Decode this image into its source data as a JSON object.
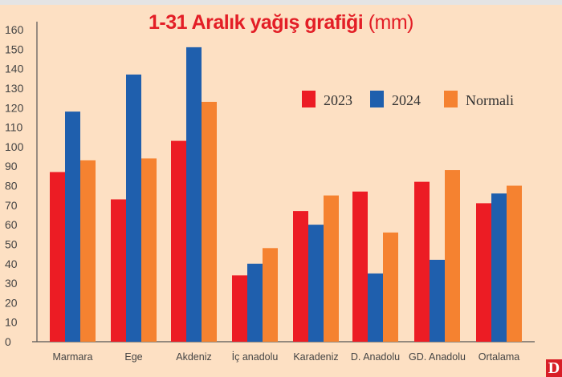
{
  "chart_data": {
    "type": "bar",
    "title": "1-31 Aralık yağış grafiği",
    "title_unit": "(mm)",
    "categories": [
      "Marmara",
      "Ege",
      "Akdeniz",
      "İç anadolu",
      "Karadeniz",
      "D. Anadolu",
      "GD. Anadolu",
      "Ortalama"
    ],
    "series": [
      {
        "name": "2023",
        "color": "#ec1c24",
        "values": [
          87,
          73,
          103,
          34,
          67,
          77,
          82,
          71
        ]
      },
      {
        "name": "2024",
        "color": "#1f5fad",
        "values": [
          118,
          137,
          151,
          40,
          60,
          35,
          42,
          76
        ]
      },
      {
        "name": "Normali",
        "color": "#f58230",
        "values": [
          93,
          94,
          123,
          48,
          75,
          56,
          88,
          80
        ]
      }
    ],
    "yticks": [
      0,
      10,
      20,
      30,
      40,
      50,
      60,
      70,
      80,
      90,
      100,
      110,
      120,
      130,
      140,
      150,
      160
    ],
    "ylim": [
      0,
      160
    ],
    "grid": false,
    "legend_position": "top-right"
  },
  "logo": "D"
}
